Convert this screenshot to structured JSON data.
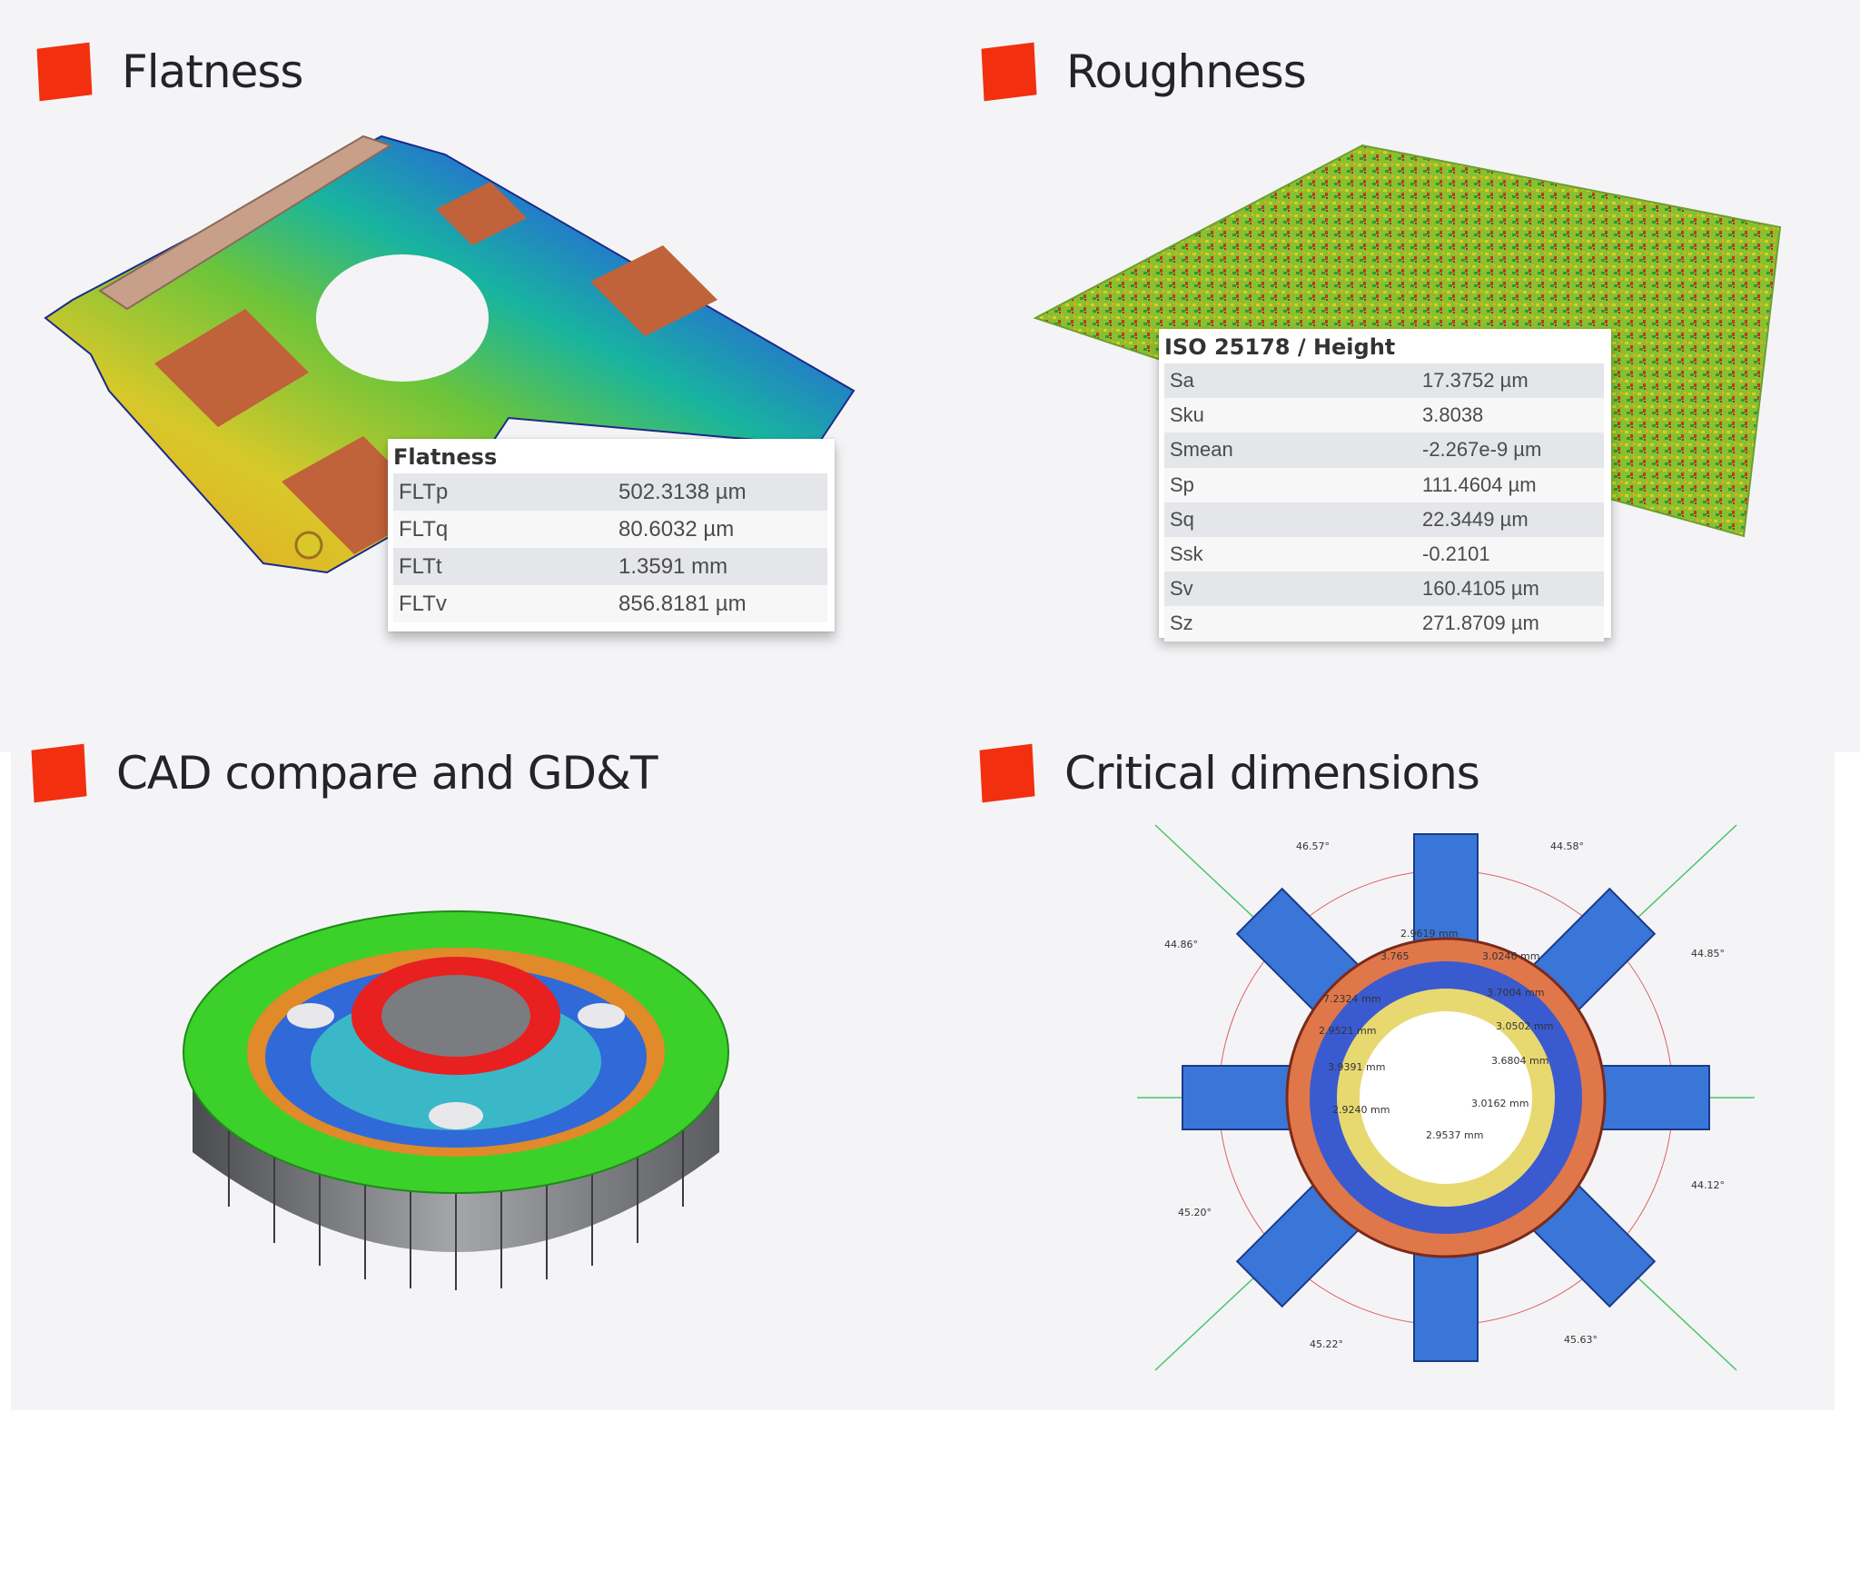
{
  "panels": {
    "flatness": {
      "heading": "Flatness",
      "table": {
        "title": "Flatness",
        "rows": [
          {
            "name": "FLTp",
            "value": "502.3138 µm"
          },
          {
            "name": "FLTq",
            "value": "80.6032 µm"
          },
          {
            "name": "FLTt",
            "value": "1.3591 mm"
          },
          {
            "name": "FLTv",
            "value": "856.8181 µm"
          }
        ]
      }
    },
    "roughness": {
      "heading": "Roughness",
      "table": {
        "title": "ISO 25178 / Height",
        "rows": [
          {
            "name": "Sa",
            "value": "17.3752 µm"
          },
          {
            "name": "Sku",
            "value": "3.8038"
          },
          {
            "name": "Smean",
            "value": "-2.267e-9 µm"
          },
          {
            "name": "Sp",
            "value": "111.4604 µm"
          },
          {
            "name": "Sq",
            "value": "22.3449 µm"
          },
          {
            "name": "Ssk",
            "value": "-0.2101"
          },
          {
            "name": "Sv",
            "value": "160.4105 µm"
          },
          {
            "name": "Sz",
            "value": "271.8709 µm"
          }
        ]
      }
    },
    "cad": {
      "heading": "CAD compare and GD&T"
    },
    "critical": {
      "heading": "Critical dimensions",
      "angles": [
        "46.57°",
        "44.58°",
        "44.86°",
        "44.85°",
        "44.12°",
        "45.20°",
        "45.22°",
        "45.63°"
      ],
      "dimensions": [
        "2.9619 mm",
        "3.765",
        "3.0246 mm",
        "7.2324 mm",
        "3.7004 mm",
        "2.9521 mm",
        "3.0502 mm",
        "3.9391 mm",
        "3.6804 mm",
        "2.9240 mm",
        "3.0162 mm",
        "2.9537 mm"
      ]
    }
  },
  "colors": {
    "marker": "#f2300f",
    "panel_bg": "#f4f4f6"
  }
}
